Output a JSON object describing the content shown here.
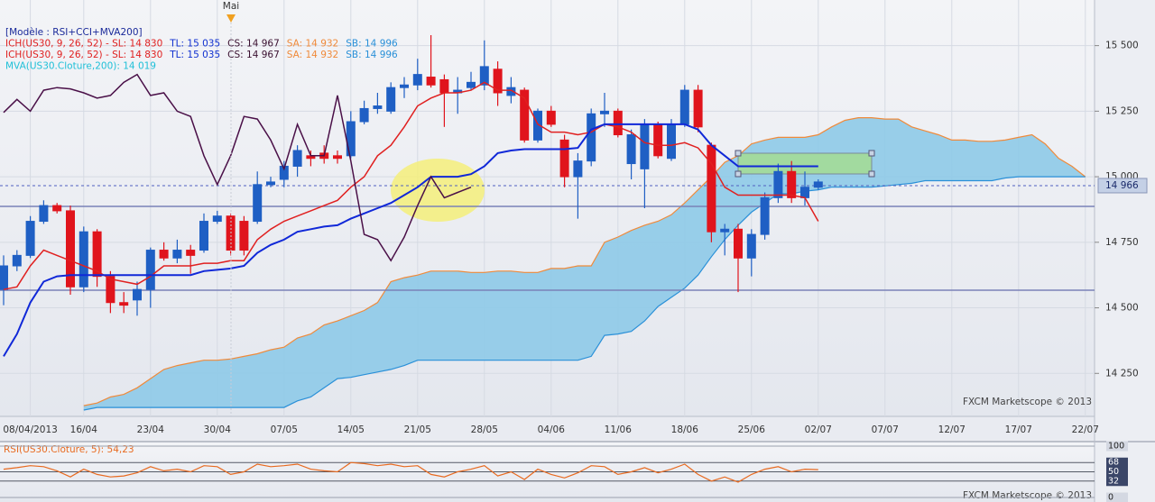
{
  "chart_data": [
    {
      "type": "candlestick",
      "annotation": "Mai",
      "watermark": "FXCM Marketscope © 2013",
      "legend": [
        [
          {
            "text": "[Modèle : RSI+CCI+MVA200]",
            "color": "#1a2a9a"
          }
        ],
        [
          {
            "text": "ICH(US30, 9, 26, 52) -  SL: 14 830",
            "color": "#e02020"
          },
          {
            "text": "TL: 15 035",
            "color": "#1030d0"
          },
          {
            "text": "CS: 14 967",
            "color": "#3a1030"
          },
          {
            "text": "SA: 14 932",
            "color": "#f08a3a"
          },
          {
            "text": "SB: 14 996",
            "color": "#2a90d8"
          }
        ],
        [
          {
            "text": "ICH(US30, 9, 26, 52) -  SL: 14 830",
            "color": "#e02020"
          },
          {
            "text": "TL: 15 035",
            "color": "#1030d0"
          },
          {
            "text": "CS: 14 967",
            "color": "#3a1030"
          },
          {
            "text": "SA: 14 932",
            "color": "#f08a3a"
          },
          {
            "text": "SB: 14 996",
            "color": "#2a90d8"
          }
        ],
        [
          {
            "text": "MVA(US30.Cloture,200): 14 019",
            "color": "#20c0d8"
          }
        ]
      ],
      "categories": [
        null,
        null,
        "08/04/2013",
        null,
        null,
        null,
        "16/04",
        null,
        null,
        null,
        null,
        "23/04",
        null,
        null,
        null,
        null,
        "30/04",
        null,
        null,
        null,
        null,
        "07/05",
        null,
        null,
        null,
        null,
        "14/05",
        null,
        null,
        null,
        null,
        "21/05",
        null,
        null,
        null,
        null,
        "28/05",
        null,
        null,
        null,
        null,
        "04/06",
        null,
        null,
        null,
        null,
        "11/06",
        null,
        null,
        null,
        null,
        "18/06",
        null,
        null,
        null,
        null,
        "25/06",
        null,
        null,
        null,
        null,
        "02/07",
        null,
        null,
        null,
        null,
        "07/07",
        null,
        null,
        null,
        null,
        "12/07",
        null,
        null,
        null,
        null,
        "17/07",
        null,
        null,
        null,
        null,
        "22/07"
      ],
      "open": [
        14570,
        14660,
        14700,
        14830,
        14890,
        14870,
        14580,
        14790,
        14620,
        14520,
        14530,
        14570,
        14720,
        14690,
        14720,
        14720,
        14830,
        14850,
        14830,
        14830,
        14970,
        14990,
        15040,
        15080,
        15090,
        15080,
        15080,
        15210,
        15260,
        15250,
        15340,
        15350,
        15380,
        15370,
        15320,
        15340,
        15350,
        15410,
        15310,
        15330,
        15140,
        15250,
        15140,
        15000,
        15060,
        15240,
        15250,
        15050,
        15030,
        15200,
        15070,
        15200,
        15330,
        15120,
        14790,
        14800,
        14690,
        14780,
        14920,
        15020,
        14920,
        14960,
        null,
        null,
        null,
        null,
        null,
        null,
        null,
        null,
        null,
        null,
        null,
        null,
        null,
        null,
        null,
        null,
        null,
        null,
        null,
        null
      ],
      "high": [
        14700,
        14720,
        14850,
        14910,
        14900,
        14890,
        14810,
        14800,
        14640,
        14560,
        14600,
        14730,
        14750,
        14760,
        14740,
        14860,
        14870,
        14860,
        14850,
        15020,
        15000,
        15060,
        15120,
        15100,
        15120,
        15100,
        15250,
        15290,
        15320,
        15360,
        15380,
        15450,
        15540,
        15390,
        15380,
        15400,
        15520,
        15440,
        15380,
        15340,
        15260,
        15270,
        15160,
        15090,
        15260,
        15320,
        15260,
        15180,
        15220,
        15210,
        15220,
        15350,
        15350,
        15130,
        14820,
        14820,
        14800,
        14940,
        15050,
        15060,
        15020,
        14990,
        null,
        null,
        null,
        null,
        null,
        null,
        null,
        null,
        null,
        null,
        null,
        null,
        null,
        null,
        null,
        null,
        null,
        null,
        null,
        null
      ],
      "low": [
        14510,
        14640,
        14690,
        14820,
        14860,
        14550,
        14560,
        14580,
        14480,
        14480,
        14470,
        14500,
        14680,
        14670,
        14630,
        14710,
        14820,
        14700,
        14700,
        14820,
        14960,
        14960,
        15000,
        15040,
        15050,
        15050,
        15070,
        15200,
        15240,
        15240,
        15300,
        15330,
        15340,
        15190,
        15240,
        15330,
        15330,
        15270,
        15280,
        15130,
        15130,
        15190,
        14960,
        14840,
        15040,
        15190,
        15150,
        14990,
        14880,
        15070,
        15060,
        15190,
        15170,
        14750,
        14700,
        14560,
        14620,
        14760,
        14900,
        14900,
        14890,
        14950,
        null,
        null,
        null,
        null,
        null,
        null,
        null,
        null,
        null,
        null,
        null,
        null,
        null,
        null,
        null,
        null,
        null,
        null,
        null,
        null
      ],
      "close": [
        14660,
        14700,
        14830,
        14890,
        14870,
        14580,
        14790,
        14620,
        14520,
        14510,
        14570,
        14720,
        14690,
        14720,
        14700,
        14830,
        14850,
        14720,
        14720,
        14970,
        14980,
        15040,
        15100,
        15070,
        15070,
        15070,
        15210,
        15260,
        15270,
        15340,
        15350,
        15390,
        15350,
        15320,
        15330,
        15360,
        15420,
        15320,
        15340,
        15140,
        15250,
        15200,
        15000,
        15060,
        15240,
        15250,
        15160,
        15160,
        15200,
        15080,
        15200,
        15330,
        15190,
        14790,
        14800,
        14690,
        14780,
        14920,
        15020,
        14920,
        14960,
        14980,
        null,
        null,
        null,
        null,
        null,
        null,
        null,
        null,
        null,
        null,
        null,
        null,
        null,
        null,
        null,
        null,
        null,
        null,
        null,
        null
      ],
      "up_color": "#1f5fc4",
      "down_color": "#e0141c",
      "lines": [
        {
          "color": "#e02020",
          "values": [
            14570,
            14580,
            14660,
            14720,
            14700,
            14680,
            14660,
            14640,
            14610,
            14600,
            14590,
            14620,
            14660,
            14660,
            14660,
            14670,
            14670,
            14680,
            14680,
            14760,
            14800,
            14830,
            14850,
            14870,
            14890,
            14910,
            14960,
            15000,
            15080,
            15120,
            15190,
            15270,
            15300,
            15320,
            15320,
            15330,
            15360,
            15330,
            15330,
            15300,
            15200,
            15170,
            15170,
            15160,
            15170,
            15200,
            15190,
            15170,
            15130,
            15120,
            15120,
            15130,
            15110,
            15050,
            14960,
            14930,
            14930,
            14930,
            14930,
            14930,
            14920,
            14830,
            null,
            null,
            null,
            null,
            null,
            null,
            null,
            null,
            null,
            null,
            null,
            null,
            null,
            null,
            null,
            null,
            null,
            null,
            null,
            null
          ]
        },
        {
          "color": "#1028d8",
          "values": [
            14315,
            14400,
            14520,
            14600,
            14620,
            14625,
            14625,
            14625,
            14625,
            14625,
            14625,
            14625,
            14625,
            14625,
            14625,
            14640,
            14645,
            14650,
            14660,
            14710,
            14740,
            14760,
            14790,
            14800,
            14810,
            14815,
            14840,
            14860,
            14880,
            14900,
            14930,
            14960,
            15000,
            15000,
            15000,
            15010,
            15040,
            15090,
            15100,
            15105,
            15105,
            15105,
            15105,
            15110,
            15180,
            15200,
            15200,
            15200,
            15200,
            15200,
            15200,
            15200,
            15180,
            15120,
            15080,
            15040,
            15040,
            15040,
            15040,
            15040,
            15040,
            15040,
            null,
            null,
            null,
            null,
            null,
            null,
            null,
            null,
            null,
            null,
            null,
            null,
            null,
            null,
            null,
            null,
            null,
            null,
            null,
            null
          ]
        },
        {
          "color": "#4a1048",
          "values": [
            15245,
            15295,
            15250,
            15330,
            15340,
            15335,
            15320,
            15300,
            15310,
            15360,
            15390,
            15310,
            15320,
            15250,
            15230,
            15080,
            14970,
            15080,
            15230,
            15220,
            15140,
            15030,
            15200,
            15080,
            15080,
            15310,
            15060,
            14780,
            14760,
            14680,
            14770,
            14890,
            15000,
            14920,
            14940,
            14960,
            null,
            null,
            null,
            null,
            null,
            null,
            null,
            null,
            null,
            null,
            null,
            null,
            null,
            null,
            null,
            null,
            null,
            null,
            null,
            null,
            null,
            null,
            null,
            null,
            null,
            null,
            null,
            null,
            null,
            null,
            null,
            null,
            null,
            null,
            null,
            null,
            null,
            null,
            null,
            null,
            null,
            null,
            null,
            null,
            null,
            null
          ]
        }
      ],
      "cloud": {
        "fill": "#8ecae8",
        "upper_color": "#f08a3a",
        "lower_color": "#2a90d8",
        "upper": [
          null,
          null,
          null,
          null,
          null,
          null,
          14127,
          14137,
          14160,
          14170,
          14195,
          14230,
          14265,
          14280,
          14290,
          14300,
          14300,
          14305,
          14315,
          14325,
          14340,
          14350,
          14385,
          14400,
          14435,
          14450,
          14470,
          14490,
          14520,
          14600,
          14615,
          14625,
          14640,
          14640,
          14640,
          14635,
          14635,
          14640,
          14640,
          14635,
          14635,
          14650,
          14650,
          14660,
          14660,
          14750,
          14770,
          14795,
          14815,
          14830,
          14855,
          14900,
          14950,
          15000,
          15055,
          15080,
          15125,
          15140,
          15150,
          15150,
          15150,
          15160,
          15190,
          15215,
          15225,
          15225,
          15220,
          15220,
          15190,
          15175,
          15160,
          15140,
          15140,
          15135,
          15135,
          15140,
          15150,
          15160,
          15125,
          15070,
          15040,
          15000
        ],
        "lower": [
          null,
          null,
          null,
          null,
          null,
          null,
          14110,
          14120,
          14120,
          14120,
          14120,
          14120,
          14120,
          14120,
          14120,
          14120,
          14120,
          14120,
          14120,
          14120,
          14120,
          14120,
          14145,
          14160,
          14195,
          14230,
          14235,
          14245,
          14255,
          14265,
          14280,
          14300,
          14300,
          14300,
          14300,
          14300,
          14300,
          14300,
          14300,
          14300,
          14300,
          14300,
          14300,
          14300,
          14315,
          14395,
          14400,
          14410,
          14450,
          14505,
          14540,
          14575,
          14625,
          14695,
          14760,
          14815,
          14865,
          14900,
          14935,
          14935,
          14945,
          14950,
          14960,
          14960,
          14960,
          14960,
          14965,
          14970,
          14975,
          14985,
          14985,
          14985,
          14985,
          14985,
          14985,
          14995,
          15000,
          15000,
          15000,
          15000,
          15000,
          15000
        ]
      },
      "last_price": {
        "value": 14966,
        "label": "14 966"
      },
      "ylim": [
        14086,
        15674
      ],
      "yticks": [
        {
          "value": 14250,
          "label": "14 250"
        },
        {
          "value": 14500,
          "label": "14 500"
        },
        {
          "value": 14750,
          "label": "14 750"
        },
        {
          "value": 15000,
          "label": "15 000"
        },
        {
          "value": 15250,
          "label": "15 250"
        },
        {
          "value": 15500,
          "label": "15 500"
        }
      ],
      "grid": true
    },
    {
      "type": "line",
      "title": "RSI(US30.Cloture, 5): 54,23",
      "watermark": "FXCM Marketscope © 2013",
      "color": "#e86a20",
      "values": [
        55,
        58,
        62,
        60,
        52,
        40,
        55,
        45,
        40,
        42,
        48,
        60,
        52,
        55,
        50,
        62,
        60,
        45,
        50,
        65,
        60,
        62,
        65,
        55,
        52,
        50,
        68,
        66,
        62,
        65,
        60,
        62,
        45,
        40,
        50,
        55,
        62,
        42,
        50,
        35,
        55,
        45,
        38,
        48,
        62,
        60,
        45,
        50,
        58,
        48,
        55,
        65,
        45,
        32,
        40,
        30,
        45,
        55,
        60,
        50,
        55,
        54.23
      ],
      "ylim": [
        0,
        100
      ],
      "yticks": [
        100,
        68,
        50,
        32,
        0
      ]
    }
  ]
}
